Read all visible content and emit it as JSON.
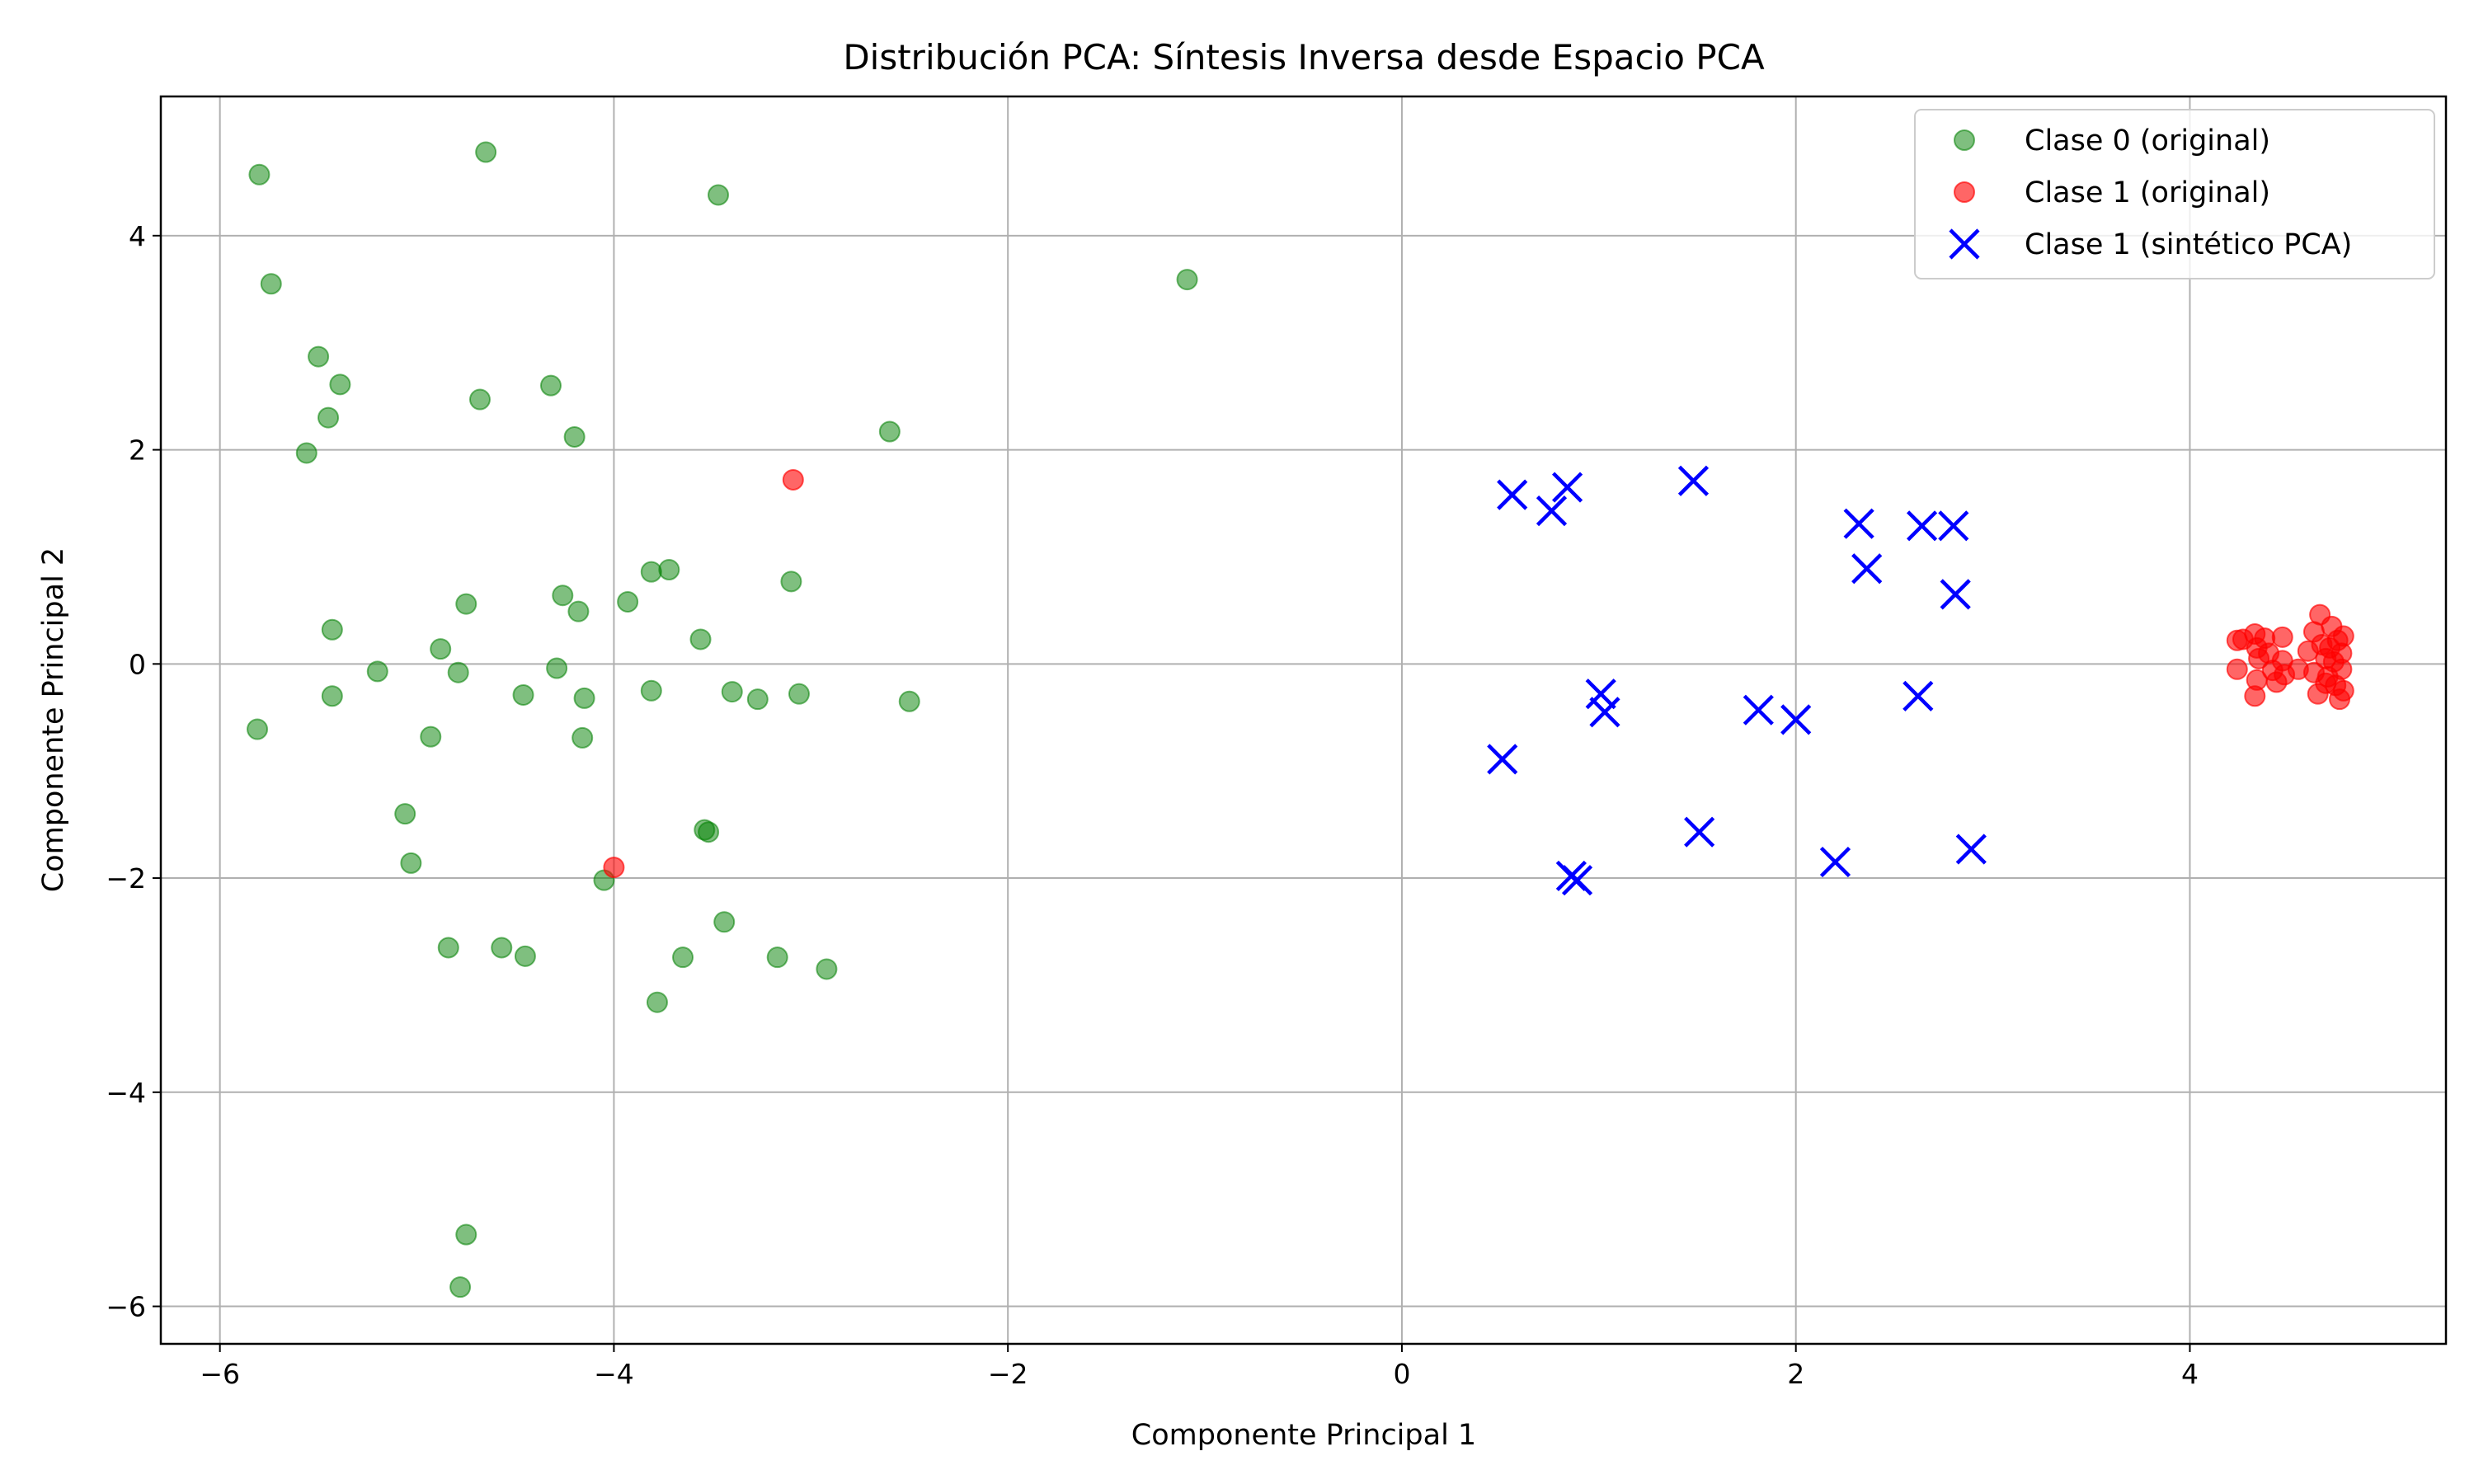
{
  "chart_data": {
    "type": "scatter",
    "title": "Distribución PCA: Síntesis Inversa desde Espacio PCA",
    "xlabel": "Componente Principal 1",
    "ylabel": "Componente Principal 2",
    "xlim": [
      -6.3,
      5.3
    ],
    "ylim": [
      -6.35,
      5.3
    ],
    "xticks": [
      -6,
      -4,
      -2,
      0,
      2,
      4
    ],
    "yticks": [
      -6,
      -4,
      -2,
      0,
      2,
      4
    ],
    "grid": true,
    "legend_position": "top-right",
    "series": [
      {
        "name": "Clase 0 (original)",
        "marker": "circle",
        "color": "#008000",
        "alpha": 0.5,
        "points": [
          [
            -5.8,
            4.57
          ],
          [
            -4.65,
            4.78
          ],
          [
            -3.47,
            4.38
          ],
          [
            -5.74,
            3.55
          ],
          [
            -1.09,
            3.59
          ],
          [
            -5.5,
            2.87
          ],
          [
            -5.39,
            2.61
          ],
          [
            -4.68,
            2.47
          ],
          [
            -4.32,
            2.6
          ],
          [
            -5.45,
            2.3
          ],
          [
            -4.2,
            2.12
          ],
          [
            -2.6,
            2.17
          ],
          [
            -5.56,
            1.97
          ],
          [
            -3.81,
            0.86
          ],
          [
            -3.72,
            0.88
          ],
          [
            -3.1,
            0.77
          ],
          [
            -4.26,
            0.64
          ],
          [
            -3.93,
            0.58
          ],
          [
            -4.75,
            0.56
          ],
          [
            -4.18,
            0.49
          ],
          [
            -5.43,
            0.32
          ],
          [
            -3.56,
            0.23
          ],
          [
            -4.88,
            0.14
          ],
          [
            -4.29,
            -0.04
          ],
          [
            -5.2,
            -0.07
          ],
          [
            -4.79,
            -0.08
          ],
          [
            -3.81,
            -0.25
          ],
          [
            -3.4,
            -0.26
          ],
          [
            -3.06,
            -0.28
          ],
          [
            -4.46,
            -0.29
          ],
          [
            -5.43,
            -0.3
          ],
          [
            -4.15,
            -0.32
          ],
          [
            -3.27,
            -0.33
          ],
          [
            -2.5,
            -0.35
          ],
          [
            -5.81,
            -0.61
          ],
          [
            -4.93,
            -0.68
          ],
          [
            -4.16,
            -0.69
          ],
          [
            -5.06,
            -1.4
          ],
          [
            -3.54,
            -1.55
          ],
          [
            -3.52,
            -1.57
          ],
          [
            -5.03,
            -1.86
          ],
          [
            -4.05,
            -2.02
          ],
          [
            -3.44,
            -2.41
          ],
          [
            -4.84,
            -2.65
          ],
          [
            -4.57,
            -2.65
          ],
          [
            -4.45,
            -2.73
          ],
          [
            -3.65,
            -2.74
          ],
          [
            -3.17,
            -2.74
          ],
          [
            -2.92,
            -2.85
          ],
          [
            -3.78,
            -3.16
          ],
          [
            -4.75,
            -5.33
          ],
          [
            -4.78,
            -5.82
          ]
        ]
      },
      {
        "name": "Clase 1 (original)",
        "marker": "circle",
        "color": "#ff0000",
        "alpha": 0.6,
        "points": [
          [
            -3.09,
            1.72
          ],
          [
            -4.0,
            -1.9
          ],
          [
            4.24,
            0.22
          ],
          [
            4.24,
            -0.05
          ],
          [
            4.27,
            0.23
          ],
          [
            4.33,
            0.28
          ],
          [
            4.34,
            0.15
          ],
          [
            4.35,
            0.05
          ],
          [
            4.34,
            -0.15
          ],
          [
            4.33,
            -0.3
          ],
          [
            4.38,
            0.24
          ],
          [
            4.4,
            0.1
          ],
          [
            4.42,
            -0.06
          ],
          [
            4.44,
            -0.17
          ],
          [
            4.47,
            0.25
          ],
          [
            4.47,
            0.03
          ],
          [
            4.48,
            -0.1
          ],
          [
            4.55,
            -0.05
          ],
          [
            4.6,
            0.12
          ],
          [
            4.63,
            -0.08
          ],
          [
            4.63,
            0.3
          ],
          [
            4.65,
            -0.28
          ],
          [
            4.66,
            0.46
          ],
          [
            4.67,
            0.18
          ],
          [
            4.69,
            0.05
          ],
          [
            4.7,
            -0.12
          ],
          [
            4.72,
            0.35
          ],
          [
            4.73,
            0.02
          ],
          [
            4.74,
            -0.2
          ],
          [
            4.75,
            0.22
          ],
          [
            4.76,
            -0.33
          ],
          [
            4.77,
            0.1
          ],
          [
            4.77,
            -0.05
          ],
          [
            4.78,
            0.26
          ],
          [
            4.78,
            -0.25
          ],
          [
            4.71,
            0.15
          ],
          [
            4.69,
            -0.18
          ]
        ]
      },
      {
        "name": "Clase 1 (sintético PCA)",
        "marker": "x",
        "color": "#0000ff",
        "alpha": 1,
        "points": [
          [
            0.56,
            1.58
          ],
          [
            0.76,
            1.43
          ],
          [
            0.84,
            1.65
          ],
          [
            1.48,
            1.71
          ],
          [
            2.32,
            1.31
          ],
          [
            2.64,
            1.29
          ],
          [
            2.8,
            1.29
          ],
          [
            2.36,
            0.89
          ],
          [
            2.81,
            0.65
          ],
          [
            1.01,
            -0.28
          ],
          [
            1.03,
            -0.45
          ],
          [
            1.81,
            -0.43
          ],
          [
            2.0,
            -0.52
          ],
          [
            2.62,
            -0.3
          ],
          [
            0.51,
            -0.89
          ],
          [
            1.51,
            -1.57
          ],
          [
            2.2,
            -1.85
          ],
          [
            2.89,
            -1.73
          ],
          [
            0.86,
            -1.98
          ],
          [
            0.89,
            -2.02
          ]
        ]
      }
    ]
  }
}
